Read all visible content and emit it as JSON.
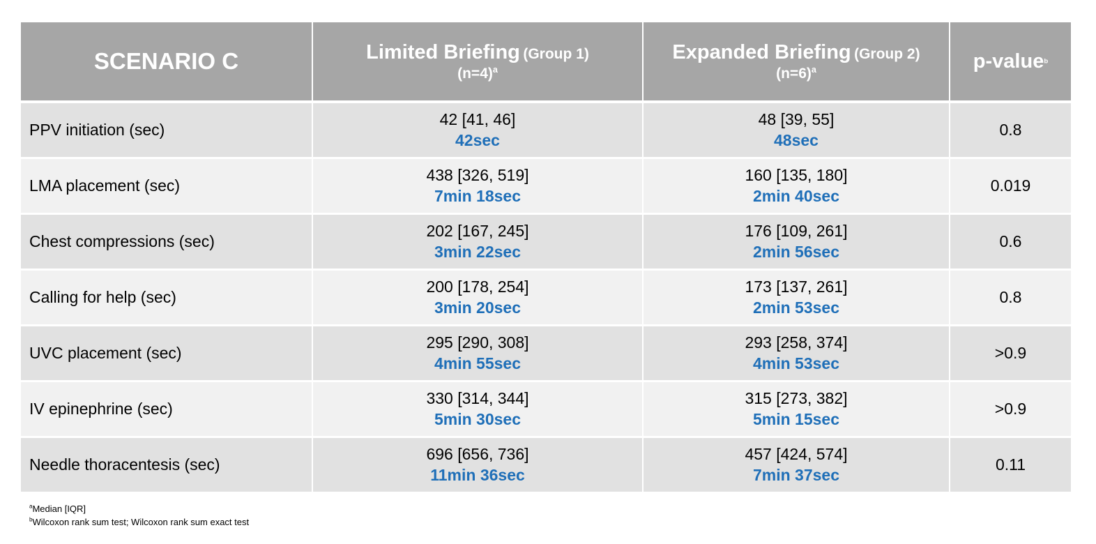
{
  "chart_data": {
    "type": "table",
    "header": {
      "scenario": "SCENARIO C",
      "group1_label": "Limited Briefing",
      "group1_group": "(Group 1)",
      "group1_n": "(n=4)",
      "group1_sup": "a",
      "group2_label": "Expanded Briefing",
      "group2_group": "(Group 2)",
      "group2_n": "(n=6)",
      "group2_sup": "a",
      "pvalue_label": "p-value",
      "pvalue_sup": "b"
    },
    "rows": [
      {
        "metric": "PPV initiation (sec)",
        "g1_raw": "42 [41, 46]",
        "g1_fmt": "42sec",
        "g2_raw": "48 [39, 55]",
        "g2_fmt": "48sec",
        "p": "0.8"
      },
      {
        "metric": "LMA placement (sec)",
        "g1_raw": "438 [326, 519]",
        "g1_fmt": "7min 18sec",
        "g2_raw": "160 [135, 180]",
        "g2_fmt": "2min 40sec",
        "p": "0.019"
      },
      {
        "metric": "Chest compressions (sec)",
        "g1_raw": "202 [167, 245]",
        "g1_fmt": "3min 22sec",
        "g2_raw": "176 [109, 261]",
        "g2_fmt": "2min 56sec",
        "p": "0.6"
      },
      {
        "metric": "Calling for help (sec)",
        "g1_raw": "200 [178, 254]",
        "g1_fmt": "3min 20sec",
        "g2_raw": "173 [137, 261]",
        "g2_fmt": "2min 53sec",
        "p": "0.8"
      },
      {
        "metric": "UVC placement (sec)",
        "g1_raw": "295 [290, 308]",
        "g1_fmt": "4min 55sec",
        "g2_raw": "293 [258, 374]",
        "g2_fmt": "4min 53sec",
        "p": ">0.9"
      },
      {
        "metric": "IV epinephrine (sec)",
        "g1_raw": "330 [314, 344]",
        "g1_fmt": "5min 30sec",
        "g2_raw": "315 [273, 382]",
        "g2_fmt": "5min 15sec",
        "p": ">0.9"
      },
      {
        "metric": "Needle thoracentesis (sec)",
        "g1_raw": "696 [656, 736]",
        "g1_fmt": "11min 36sec",
        "g2_raw": "457 [424, 574]",
        "g2_fmt": "7min 37sec",
        "p": "0.11"
      }
    ],
    "footnotes": [
      {
        "mark": "a",
        "text": "Median [IQR]"
      },
      {
        "mark": "b",
        "text": "Wilcoxon rank sum test; Wilcoxon rank sum exact test"
      }
    ],
    "colors": {
      "header_bg": "#a6a6a6",
      "row_dark": "#e1e1e1",
      "row_light": "#f1f1f1",
      "accent_blue": "#1f6fb8"
    }
  }
}
